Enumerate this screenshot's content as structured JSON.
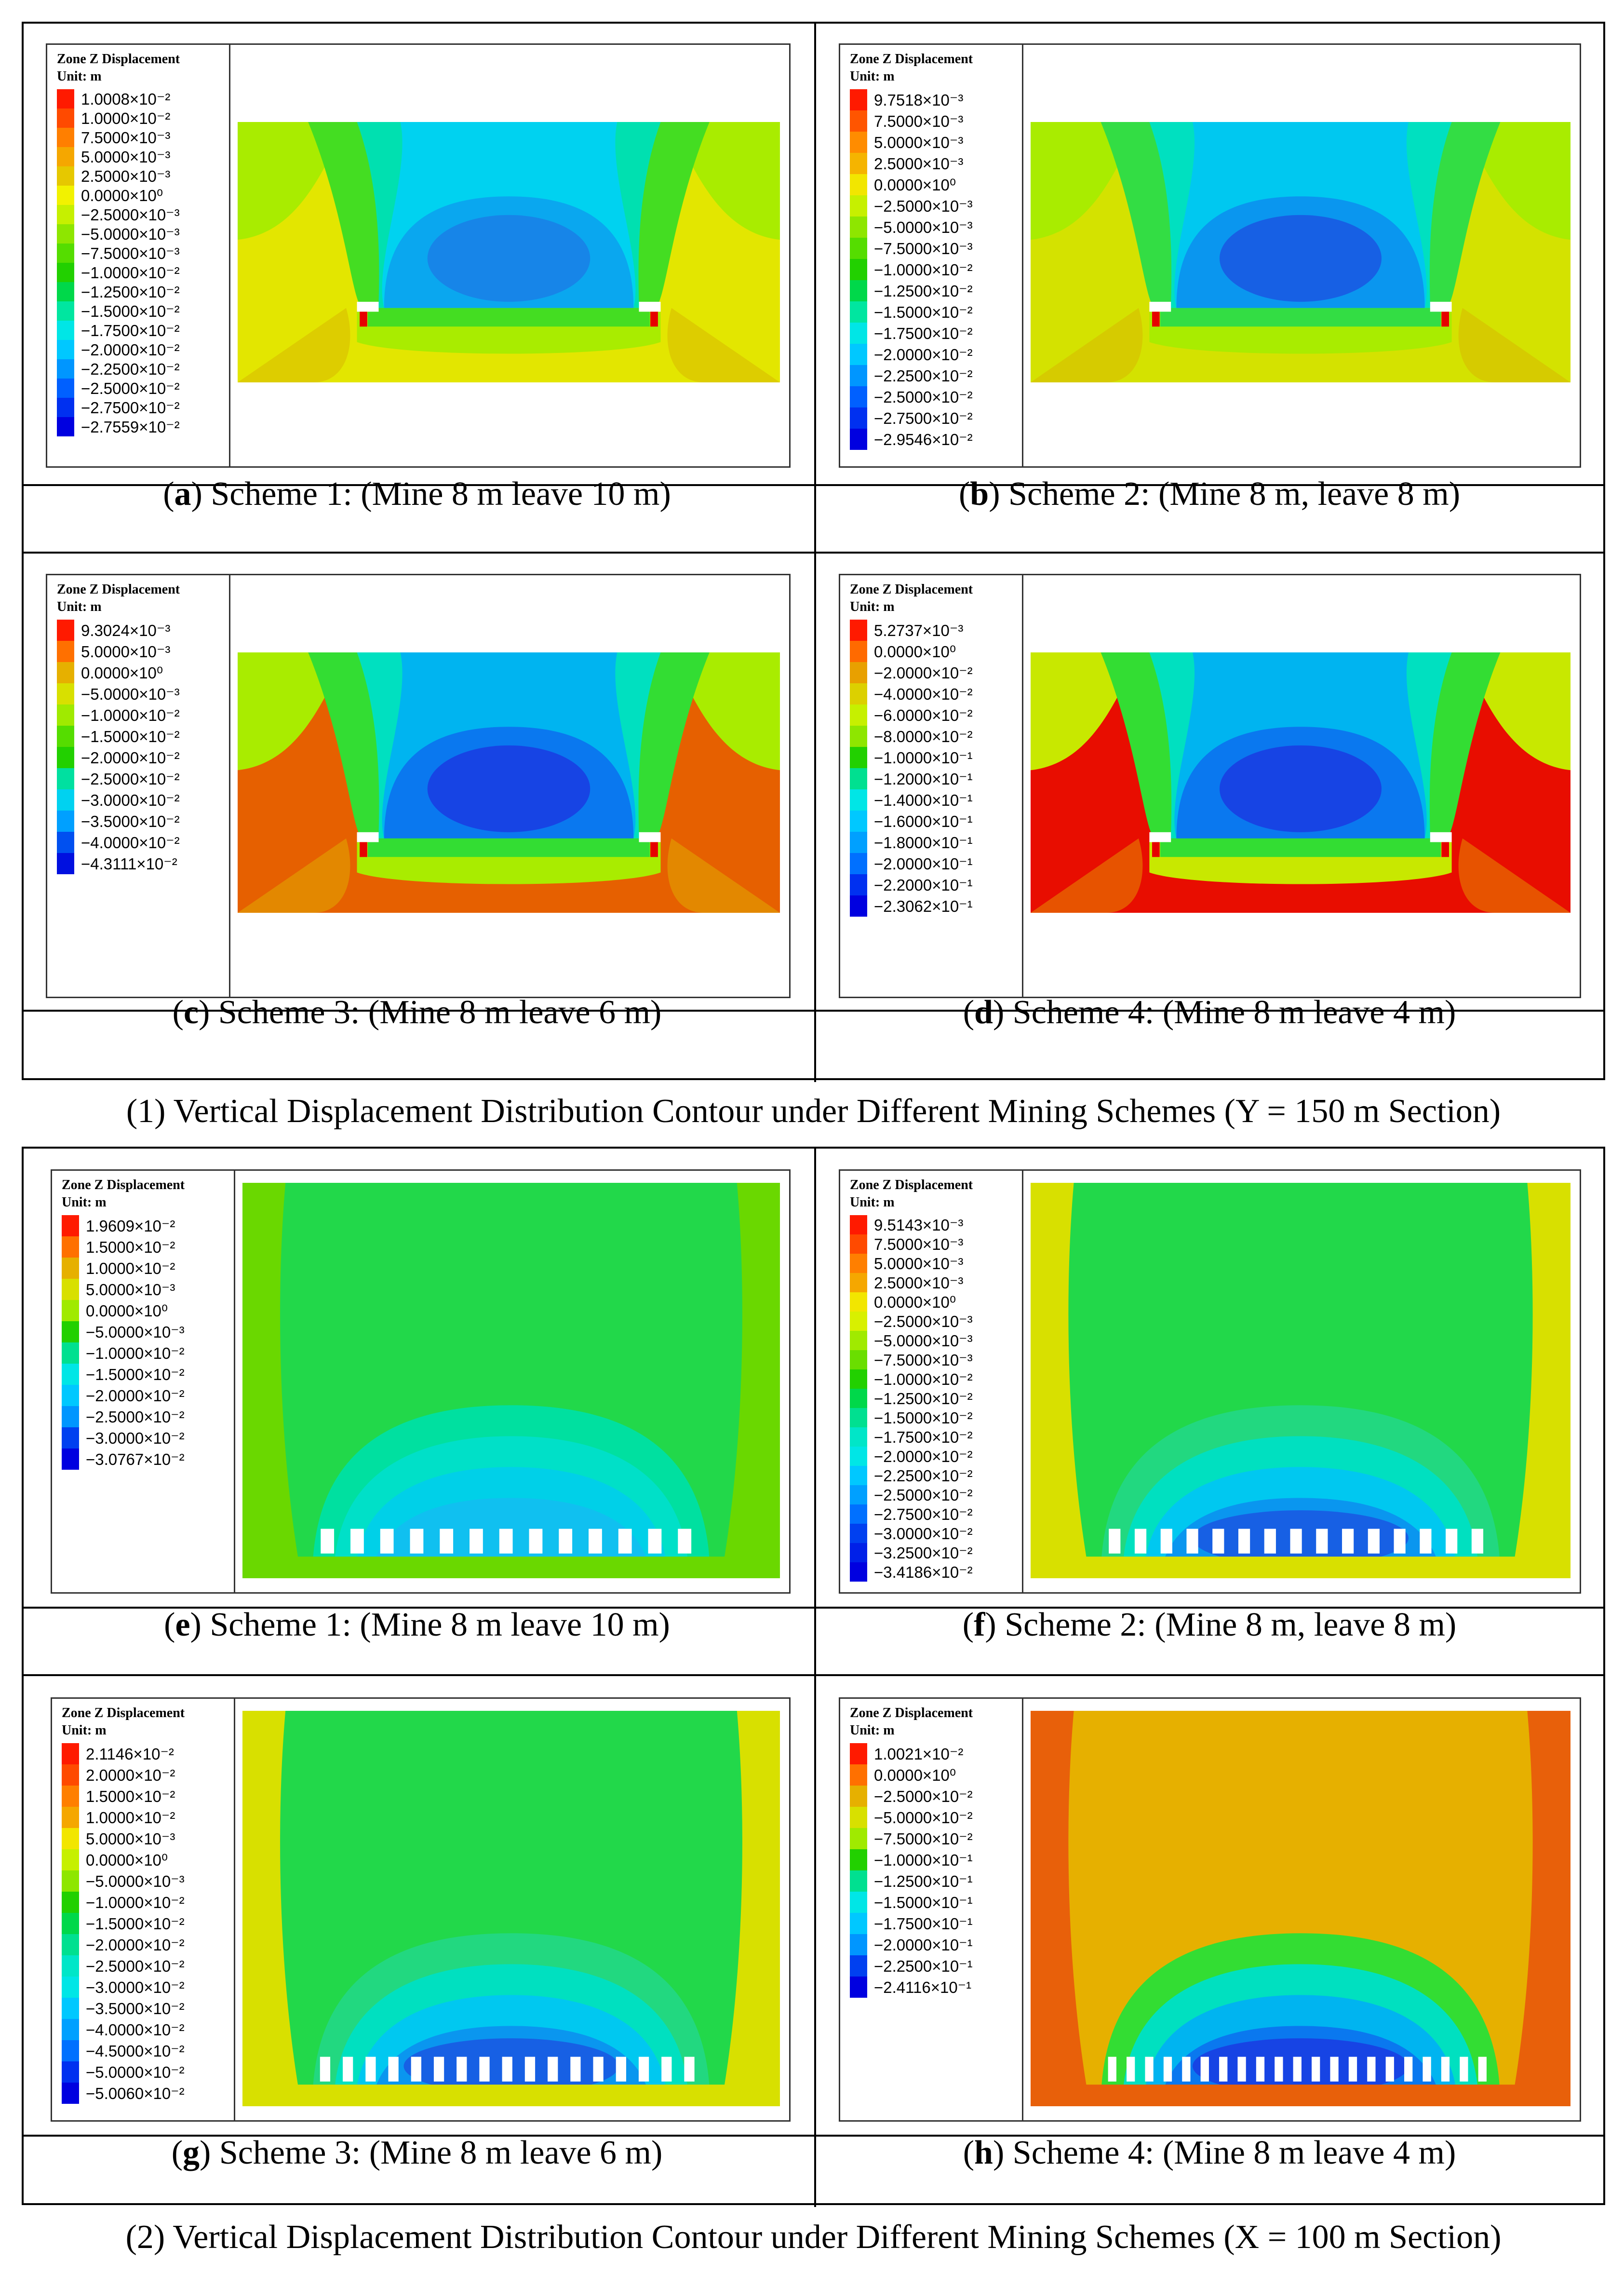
{
  "legend_title": "Zone Z Displacement",
  "legend_unit": "Unit: m",
  "sections": [
    "(1) Vertical Displacement Distribution Contour under Different Mining Schemes (Y = 150 m Section)",
    "(2) Vertical Displacement Distribution Contour under Different Mining Schemes (X = 100 m Section)"
  ],
  "panels": [
    {
      "letter": "a",
      "caption": " Scheme 1: (Mine 8 m leave 10 m)",
      "type": "Y",
      "pillars": 2,
      "legend": [
        "1.0008×10⁻²",
        "1.0000×10⁻²",
        "7.5000×10⁻³",
        "5.0000×10⁻³",
        "2.5000×10⁻³",
        "0.0000×10⁰",
        "−2.5000×10⁻³",
        "−5.0000×10⁻³",
        "−7.5000×10⁻³",
        "−1.0000×10⁻²",
        "−1.2500×10⁻²",
        "−1.5000×10⁻²",
        "−1.7500×10⁻²",
        "−2.0000×10⁻²",
        "−2.2500×10⁻²",
        "−2.5000×10⁻²",
        "−2.7500×10⁻²",
        "−2.7559×10⁻²"
      ],
      "swatches": [
        "#ff1a00",
        "#ff4a00",
        "#ff7f00",
        "#f5a700",
        "#e6c800",
        "#f2f200",
        "#c6f000",
        "#8ee600",
        "#55dd00",
        "#22d000",
        "#00d84a",
        "#00e6a0",
        "#00e6e6",
        "#00c8ff",
        "#0096ff",
        "#0060ff",
        "#0030f0",
        "#0000e0"
      ],
      "outer": "#e3e600",
      "edge": "#d8b400",
      "mid": "#a9ec00",
      "c1": "#44dd22",
      "c2": "#00e0b0",
      "c3": "#00d2f0",
      "c4": "#0aa7ef",
      "c5": "#1785e8"
    },
    {
      "letter": "b",
      "caption": " Scheme 2: (Mine 8 m, leave 8 m)",
      "type": "Y",
      "pillars": 2,
      "legend": [
        "9.7518×10⁻³",
        "7.5000×10⁻³",
        "5.0000×10⁻³",
        "2.5000×10⁻³",
        "0.0000×10⁰",
        "−2.5000×10⁻³",
        "−5.0000×10⁻³",
        "−7.5000×10⁻³",
        "−1.0000×10⁻²",
        "−1.2500×10⁻²",
        "−1.5000×10⁻²",
        "−1.7500×10⁻²",
        "−2.0000×10⁻²",
        "−2.2500×10⁻²",
        "−2.5000×10⁻²",
        "−2.7500×10⁻²",
        "−2.9546×10⁻²"
      ],
      "swatches": [
        "#ff1a00",
        "#ff5500",
        "#ff8c00",
        "#f5b400",
        "#f2e600",
        "#c6f000",
        "#8ee600",
        "#55dd00",
        "#22d000",
        "#00d84a",
        "#00e6a0",
        "#00e6e6",
        "#00c8ff",
        "#0096ff",
        "#0060ff",
        "#0030f0",
        "#0000e0"
      ],
      "outer": "#d4e200",
      "edge": "#d8b400",
      "mid": "#a9ec00",
      "c1": "#33dd44",
      "c2": "#00e0c0",
      "c3": "#00c8f0",
      "c4": "#0a96ef",
      "c5": "#1760e4"
    },
    {
      "letter": "c",
      "caption": " Scheme 3: (Mine 8 m leave 6 m)",
      "type": "Y",
      "pillars": 2,
      "legend": [
        "9.3024×10⁻³",
        "5.0000×10⁻³",
        "0.0000×10⁰",
        "−5.0000×10⁻³",
        "−1.0000×10⁻²",
        "−1.5000×10⁻²",
        "−2.0000×10⁻²",
        "−2.5000×10⁻²",
        "−3.0000×10⁻²",
        "−3.5000×10⁻²",
        "−4.0000×10⁻²",
        "−4.3111×10⁻²"
      ],
      "swatches": [
        "#ff1a00",
        "#ff7000",
        "#e6b000",
        "#d8e000",
        "#a0ea00",
        "#55dd00",
        "#22d000",
        "#00e0a0",
        "#00d2f0",
        "#00a0ff",
        "#0050f0",
        "#0010e0"
      ],
      "outer": "#e66000",
      "edge": "#e0b000",
      "mid": "#a9ec00",
      "c1": "#33dd33",
      "c2": "#00e0c0",
      "c3": "#00b4f0",
      "c4": "#0a78ef",
      "c5": "#1744e4"
    },
    {
      "letter": "d",
      "caption": " Scheme 4: (Mine 8 m leave 4 m)",
      "type": "Y",
      "pillars": 2,
      "legend": [
        "5.2737×10⁻³",
        "0.0000×10⁰",
        "−2.0000×10⁻²",
        "−4.0000×10⁻²",
        "−6.0000×10⁻²",
        "−8.0000×10⁻²",
        "−1.0000×10⁻¹",
        "−1.2000×10⁻¹",
        "−1.4000×10⁻¹",
        "−1.6000×10⁻¹",
        "−1.8000×10⁻¹",
        "−2.0000×10⁻¹",
        "−2.2000×10⁻¹",
        "−2.3062×10⁻¹"
      ],
      "swatches": [
        "#ff1a00",
        "#ff6a00",
        "#e8a000",
        "#dcd000",
        "#c6f000",
        "#8ee600",
        "#22d000",
        "#00e090",
        "#00e6e6",
        "#00c8ff",
        "#00a0ff",
        "#0070ff",
        "#0030f0",
        "#0000e0"
      ],
      "outer": "#e80d00",
      "edge": "#e69a00",
      "mid": "#c8e800",
      "c1": "#33dd33",
      "c2": "#00e0c0",
      "c3": "#00b4f0",
      "c4": "#0a78ef",
      "c5": "#1744e4"
    },
    {
      "letter": "e",
      "caption": " Scheme 1: (Mine 8 m leave 10 m)",
      "type": "X",
      "pillars": 13,
      "legend": [
        "1.9609×10⁻²",
        "1.5000×10⁻²",
        "1.0000×10⁻²",
        "5.0000×10⁻³",
        "0.0000×10⁰",
        "−5.0000×10⁻³",
        "−1.0000×10⁻²",
        "−1.5000×10⁻²",
        "−2.0000×10⁻²",
        "−2.5000×10⁻²",
        "−3.0000×10⁻²",
        "−3.0767×10⁻²"
      ],
      "swatches": [
        "#ff1a00",
        "#ff7000",
        "#e6b000",
        "#d8e000",
        "#a0ea00",
        "#22d000",
        "#00e090",
        "#00e6e6",
        "#00c8ff",
        "#0096ff",
        "#0040f0",
        "#0000e0"
      ],
      "outer": "#22d84a",
      "edge": "#6ad800",
      "mid": "#22d84a",
      "c1": "#00e0a0",
      "c2": "#00e0c8",
      "c3": "#00d0e8",
      "c4": "#10c0f0",
      "c5": "#10c0f0"
    },
    {
      "letter": "f",
      "caption": " Scheme 2: (Mine 8 m, leave 8 m)",
      "type": "X",
      "pillars": 15,
      "legend": [
        "9.5143×10⁻³",
        "7.5000×10⁻³",
        "5.0000×10⁻³",
        "2.5000×10⁻³",
        "0.0000×10⁰",
        "−2.5000×10⁻³",
        "−5.0000×10⁻³",
        "−7.5000×10⁻³",
        "−1.0000×10⁻²",
        "−1.2500×10⁻²",
        "−1.5000×10⁻²",
        "−1.7500×10⁻²",
        "−2.0000×10⁻²",
        "−2.2500×10⁻²",
        "−2.5000×10⁻²",
        "−2.7500×10⁻²",
        "−3.0000×10⁻²",
        "−3.2500×10⁻²",
        "−3.4186×10⁻²"
      ],
      "swatches": [
        "#ff1a00",
        "#ff4a00",
        "#ff7f00",
        "#f5a700",
        "#f2e600",
        "#d8f000",
        "#a0ea00",
        "#6ade00",
        "#22d000",
        "#00d84a",
        "#00e090",
        "#00e6c8",
        "#00e6e6",
        "#00c8ff",
        "#00a0ff",
        "#0070ff",
        "#0040f0",
        "#0020e8",
        "#0000e0"
      ],
      "outer": "#22d84a",
      "edge": "#d8e000",
      "mid": "#55dd22",
      "c1": "#22d880",
      "c2": "#00e0c0",
      "c3": "#00c8f0",
      "c4": "#0a96ef",
      "c5": "#1760e4"
    },
    {
      "letter": "g",
      "caption": " Scheme 3: (Mine 8 m leave 6 m)",
      "type": "X",
      "pillars": 17,
      "legend": [
        "2.1146×10⁻²",
        "2.0000×10⁻²",
        "1.5000×10⁻²",
        "1.0000×10⁻²",
        "5.0000×10⁻³",
        "0.0000×10⁰",
        "−5.0000×10⁻³",
        "−1.0000×10⁻²",
        "−1.5000×10⁻²",
        "−2.0000×10⁻²",
        "−2.5000×10⁻²",
        "−3.0000×10⁻²",
        "−3.5000×10⁻²",
        "−4.0000×10⁻²",
        "−4.5000×10⁻²",
        "−5.0000×10⁻²",
        "−5.0060×10⁻²"
      ],
      "swatches": [
        "#ff1a00",
        "#ff4a00",
        "#ff7f00",
        "#f5a700",
        "#f2e600",
        "#c6f000",
        "#8ee600",
        "#22d000",
        "#00d84a",
        "#00e090",
        "#00e6c8",
        "#00e6e6",
        "#00c8ff",
        "#00a0ff",
        "#0070ff",
        "#0030f0",
        "#0000e0"
      ],
      "outer": "#22d84a",
      "edge": "#d8e000",
      "mid": "#55dd22",
      "c1": "#22d880",
      "c2": "#00e0c0",
      "c3": "#00c8f0",
      "c4": "#0a96ef",
      "c5": "#1760e4"
    },
    {
      "letter": "h",
      "caption": " Scheme 4: (Mine 8 m leave 4 m)",
      "type": "X",
      "pillars": 21,
      "legend": [
        "1.0021×10⁻²",
        "0.0000×10⁰",
        "−2.5000×10⁻²",
        "−5.0000×10⁻²",
        "−7.5000×10⁻²",
        "−1.0000×10⁻¹",
        "−1.2500×10⁻¹",
        "−1.5000×10⁻¹",
        "−1.7500×10⁻¹",
        "−2.0000×10⁻¹",
        "−2.2500×10⁻¹",
        "−2.4116×10⁻¹"
      ],
      "swatches": [
        "#ff1a00",
        "#ff7000",
        "#e6b000",
        "#d8e000",
        "#a0ea00",
        "#22d000",
        "#00e090",
        "#00e6e6",
        "#00c8ff",
        "#0096ff",
        "#0040f0",
        "#0000e0"
      ],
      "outer": "#e6b000",
      "edge": "#e8600a",
      "mid": "#c8e800",
      "c1": "#33dd33",
      "c2": "#00e0c0",
      "c3": "#00b4f0",
      "c4": "#0a78ef",
      "c5": "#1744e4"
    }
  ]
}
